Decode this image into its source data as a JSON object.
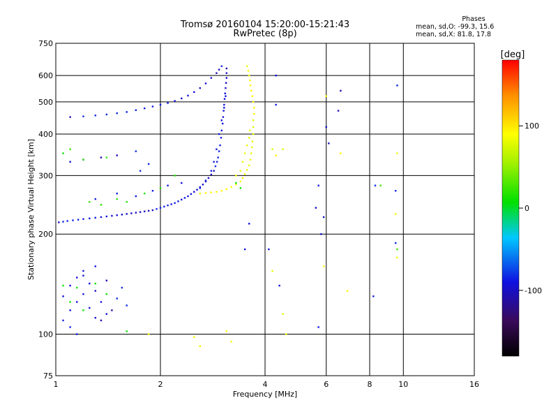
{
  "header": {
    "title_line1": "Tromsø 20160104 15:20:00-15:21:43",
    "title_line2": "RwPretec (8p)"
  },
  "phases_box": {
    "heading": "Phases",
    "line_o": "mean, sd,O: -99.3, 15.6",
    "line_x": "mean, sd,X:  81.8, 17.8"
  },
  "colorbar": {
    "label": "[deg]",
    "range": [
      -180,
      180
    ],
    "ticks": [
      "100",
      "0",
      "-100"
    ],
    "tick_values": [
      100,
      0,
      -100
    ]
  },
  "chart_data": {
    "type": "scatter",
    "xlabel": "Frequency [MHz]",
    "ylabel": "Stationary phase Virtual Height [km]",
    "xscale": "log",
    "yscale": "log",
    "xlim": [
      1,
      16
    ],
    "ylim": [
      75,
      750
    ],
    "x_ticks": [
      1,
      2,
      4,
      6,
      8,
      10,
      16
    ],
    "y_ticks": [
      75,
      100,
      200,
      300,
      400,
      500,
      600,
      750
    ],
    "grid": true,
    "series": [
      {
        "component": "O",
        "color_phase": -100,
        "points": [
          [
            1.02,
            217
          ],
          [
            1.05,
            218
          ],
          [
            1.08,
            219
          ],
          [
            1.12,
            220
          ],
          [
            1.16,
            221
          ],
          [
            1.2,
            222
          ],
          [
            1.25,
            223
          ],
          [
            1.3,
            224
          ],
          [
            1.35,
            225
          ],
          [
            1.4,
            226
          ],
          [
            1.45,
            227
          ],
          [
            1.5,
            228
          ],
          [
            1.55,
            229
          ],
          [
            1.6,
            230
          ],
          [
            1.65,
            231
          ],
          [
            1.7,
            232
          ],
          [
            1.75,
            233
          ],
          [
            1.8,
            234
          ],
          [
            1.85,
            235
          ],
          [
            1.9,
            236
          ],
          [
            1.95,
            238
          ],
          [
            2.0,
            240
          ],
          [
            2.05,
            242
          ],
          [
            2.1,
            244
          ],
          [
            2.15,
            246
          ],
          [
            2.2,
            248
          ],
          [
            2.25,
            251
          ],
          [
            2.3,
            254
          ],
          [
            2.35,
            257
          ],
          [
            2.4,
            260
          ],
          [
            2.45,
            264
          ],
          [
            2.5,
            268
          ],
          [
            2.55,
            272
          ],
          [
            2.6,
            277
          ],
          [
            2.65,
            282
          ],
          [
            2.7,
            288
          ],
          [
            2.75,
            295
          ],
          [
            2.8,
            302
          ],
          [
            2.85,
            310
          ],
          [
            2.88,
            320
          ],
          [
            2.91,
            330
          ],
          [
            2.93,
            340
          ],
          [
            2.95,
            355
          ],
          [
            2.97,
            370
          ],
          [
            2.99,
            390
          ],
          [
            3.0,
            410
          ],
          [
            3.02,
            430
          ],
          [
            3.03,
            450
          ],
          [
            3.04,
            470
          ],
          [
            3.05,
            490
          ],
          [
            3.06,
            510
          ],
          [
            3.07,
            530
          ],
          [
            3.08,
            550
          ],
          [
            3.09,
            570
          ],
          [
            3.1,
            590
          ],
          [
            3.1,
            610
          ],
          [
            3.1,
            630
          ],
          [
            1.1,
            450
          ],
          [
            1.2,
            452
          ],
          [
            1.3,
            455
          ],
          [
            1.4,
            458
          ],
          [
            1.5,
            462
          ],
          [
            1.6,
            466
          ],
          [
            1.7,
            472
          ],
          [
            1.8,
            478
          ],
          [
            1.9,
            484
          ],
          [
            2.0,
            490
          ],
          [
            2.1,
            496
          ],
          [
            2.2,
            503
          ],
          [
            2.3,
            512
          ],
          [
            2.4,
            522
          ],
          [
            2.5,
            535
          ],
          [
            2.6,
            550
          ],
          [
            2.7,
            568
          ],
          [
            2.8,
            590
          ],
          [
            2.9,
            610
          ],
          [
            2.95,
            625
          ],
          [
            3.0,
            640
          ],
          [
            2.6,
            275
          ],
          [
            2.7,
            290
          ],
          [
            2.8,
            310
          ],
          [
            2.85,
            330
          ],
          [
            2.9,
            360
          ],
          [
            2.95,
            400
          ],
          [
            3.0,
            440
          ],
          [
            3.05,
            480
          ],
          [
            3.08,
            520
          ],
          [
            1.05,
            130
          ],
          [
            1.1,
            140
          ],
          [
            1.15,
            125
          ],
          [
            1.2,
            150
          ],
          [
            1.25,
            120
          ],
          [
            1.3,
            135
          ],
          [
            1.35,
            110
          ],
          [
            1.4,
            145
          ],
          [
            1.45,
            118
          ],
          [
            1.5,
            128
          ],
          [
            1.55,
            138
          ],
          [
            1.6,
            122
          ],
          [
            1.05,
            110
          ],
          [
            1.1,
            105
          ],
          [
            1.15,
            100
          ],
          [
            1.2,
            155
          ],
          [
            1.3,
            160
          ],
          [
            1.4,
            115
          ],
          [
            1.25,
            142
          ],
          [
            1.35,
            125
          ],
          [
            1.1,
            118
          ],
          [
            1.2,
            132
          ],
          [
            1.15,
            148
          ],
          [
            1.3,
            112
          ],
          [
            1.1,
            330
          ],
          [
            1.2,
            335
          ],
          [
            1.35,
            340
          ],
          [
            1.5,
            345
          ],
          [
            1.7,
            355
          ],
          [
            1.85,
            325
          ],
          [
            1.75,
            310
          ],
          [
            1.3,
            255
          ],
          [
            1.5,
            265
          ],
          [
            1.7,
            260
          ],
          [
            1.9,
            270
          ],
          [
            2.1,
            280
          ],
          [
            2.3,
            285
          ],
          [
            4.3,
            600
          ],
          [
            4.3,
            490
          ],
          [
            5.7,
            280
          ],
          [
            5.6,
            240
          ],
          [
            5.8,
            200
          ],
          [
            5.9,
            225
          ],
          [
            6.0,
            420
          ],
          [
            6.1,
            375
          ],
          [
            6.6,
            540
          ],
          [
            6.5,
            470
          ],
          [
            8.3,
            280
          ],
          [
            9.5,
            270
          ],
          [
            9.5,
            188
          ],
          [
            9.6,
            560
          ],
          [
            8.2,
            130
          ],
          [
            5.7,
            105
          ],
          [
            4.1,
            180
          ],
          [
            4.4,
            140
          ],
          [
            3.6,
            215
          ],
          [
            3.5,
            180
          ]
        ]
      },
      {
        "component": "X",
        "color_phase": 90,
        "points": [
          [
            2.6,
            265
          ],
          [
            2.7,
            266
          ],
          [
            2.8,
            267
          ],
          [
            2.9,
            268
          ],
          [
            3.0,
            270
          ],
          [
            3.1,
            273
          ],
          [
            3.2,
            277
          ],
          [
            3.3,
            282
          ],
          [
            3.4,
            288
          ],
          [
            3.45,
            295
          ],
          [
            3.5,
            303
          ],
          [
            3.55,
            312
          ],
          [
            3.6,
            322
          ],
          [
            3.63,
            335
          ],
          [
            3.65,
            350
          ],
          [
            3.67,
            365
          ],
          [
            3.68,
            380
          ],
          [
            3.7,
            400
          ],
          [
            3.7,
            420
          ],
          [
            3.7,
            440
          ],
          [
            3.72,
            460
          ],
          [
            3.72,
            480
          ],
          [
            3.7,
            500
          ],
          [
            3.68,
            520
          ],
          [
            3.65,
            540
          ],
          [
            3.63,
            560
          ],
          [
            3.62,
            580
          ],
          [
            3.6,
            600
          ],
          [
            3.58,
            620
          ],
          [
            3.55,
            640
          ],
          [
            3.3,
            300
          ],
          [
            3.4,
            310
          ],
          [
            3.45,
            330
          ],
          [
            3.5,
            350
          ],
          [
            3.55,
            370
          ],
          [
            3.6,
            390
          ],
          [
            3.62,
            410
          ],
          [
            4.2,
            360
          ],
          [
            4.5,
            360
          ],
          [
            4.3,
            345
          ],
          [
            5.9,
            160
          ],
          [
            6.0,
            520
          ],
          [
            6.6,
            350
          ],
          [
            6.9,
            135
          ],
          [
            4.6,
            100
          ],
          [
            3.1,
            102
          ],
          [
            2.5,
            98
          ],
          [
            2.6,
            92
          ],
          [
            1.85,
            100
          ],
          [
            3.2,
            95
          ],
          [
            9.6,
            350
          ],
          [
            9.5,
            230
          ],
          [
            9.6,
            170
          ],
          [
            4.2,
            155
          ],
          [
            4.5,
            115
          ]
        ]
      },
      {
        "component": "mixed",
        "color_phase": 10,
        "points": [
          [
            1.05,
            350
          ],
          [
            1.1,
            360
          ],
          [
            1.2,
            335
          ],
          [
            1.4,
            340
          ],
          [
            1.25,
            250
          ],
          [
            1.35,
            245
          ],
          [
            1.5,
            255
          ],
          [
            1.6,
            250
          ],
          [
            1.8,
            265
          ],
          [
            2.0,
            275
          ],
          [
            2.2,
            300
          ],
          [
            1.05,
            140
          ],
          [
            1.15,
            138
          ],
          [
            1.3,
            142
          ],
          [
            1.4,
            132
          ],
          [
            1.2,
            118
          ],
          [
            1.1,
            125
          ],
          [
            1.6,
            102
          ],
          [
            3.4,
            275
          ],
          [
            3.3,
            285
          ],
          [
            8.6,
            280
          ],
          [
            9.6,
            180
          ]
        ]
      }
    ]
  }
}
